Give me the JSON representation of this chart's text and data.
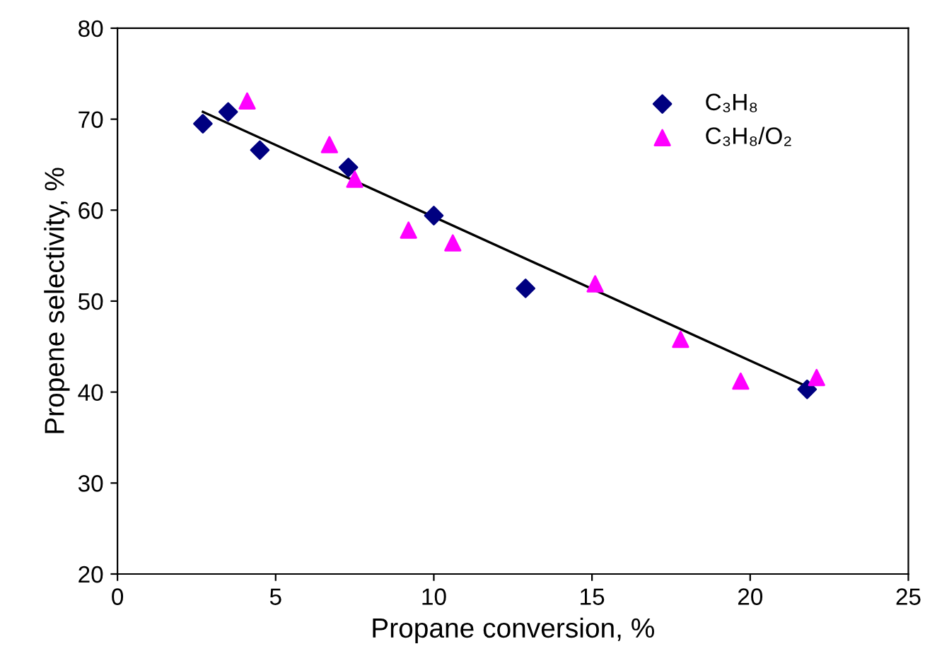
{
  "chart_data": {
    "type": "scatter",
    "xlabel": "Propane conversion, %",
    "ylabel": "Propene selectivity, %",
    "xlim": [
      0,
      25
    ],
    "xticks": [
      0,
      5,
      10,
      15,
      20,
      25
    ],
    "ylim": [
      20,
      80
    ],
    "yticks": [
      20,
      30,
      40,
      50,
      60,
      70,
      80
    ],
    "grid": false,
    "legend": "top right",
    "series": [
      {
        "name": "C₃H₈",
        "color": "#000080",
        "marker": "diamond",
        "x": [
          2.7,
          3.5,
          4.5,
          7.3,
          10.0,
          12.9,
          21.8
        ],
        "values": [
          69.5,
          70.8,
          66.6,
          64.7,
          59.4,
          51.4,
          40.3
        ]
      },
      {
        "name": "C₃H₈/O₂",
        "color": "#ff00ff",
        "marker": "triangle",
        "x": [
          4.1,
          6.7,
          7.5,
          9.2,
          10.6,
          15.1,
          17.8,
          19.7,
          22.1
        ],
        "values": [
          72.0,
          67.2,
          63.4,
          57.8,
          56.4,
          51.9,
          45.8,
          41.2,
          41.6
        ]
      },
      {
        "type": "line",
        "color": "#000000",
        "marker": "none",
        "line_style": "solid",
        "x": [
          2.7,
          21.8
        ],
        "values": [
          70.8,
          40.6
        ]
      }
    ]
  }
}
